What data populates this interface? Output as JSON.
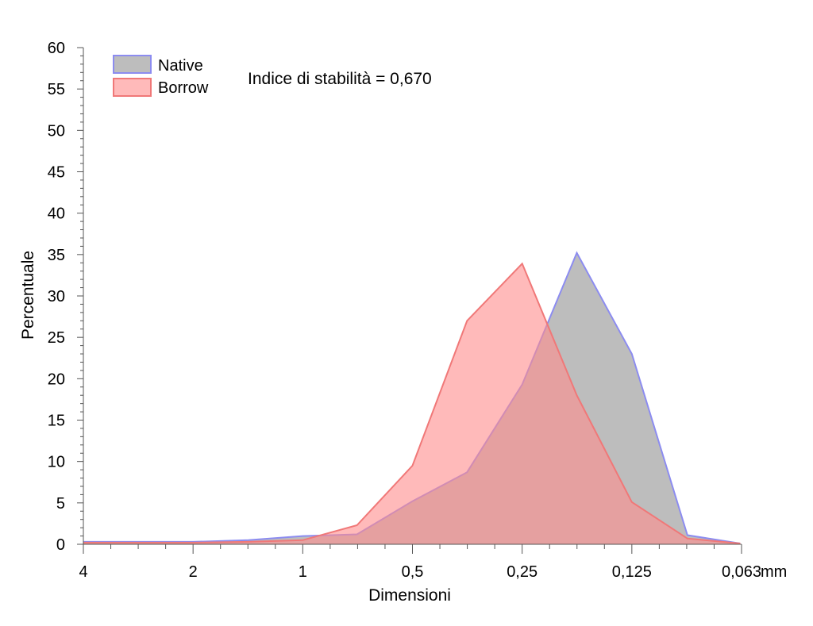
{
  "chart_data": {
    "type": "area",
    "title": "",
    "xlabel": "Dimensioni",
    "ylabel": "Percentuale",
    "annotation": "Indice di stabilità = 0,670",
    "x_unit": "mm",
    "x_ticks": [
      "4",
      "2",
      "1",
      "0,5",
      "0,25",
      "0,125",
      "0,063"
    ],
    "x_scale": "log2 phi (decreasing grain size)",
    "ylim": [
      0,
      60
    ],
    "y_ticks": [
      0,
      5,
      10,
      15,
      20,
      25,
      30,
      35,
      40,
      45,
      50,
      55,
      60
    ],
    "grid": false,
    "legend_position": "top-left",
    "x": [
      4,
      2.83,
      2,
      1.41,
      1,
      0.71,
      0.5,
      0.354,
      0.25,
      0.177,
      0.125,
      0.088,
      0.063
    ],
    "series": [
      {
        "name": "Native",
        "fill": "#bdbdbd",
        "stroke": "#8c8cf0",
        "values": [
          0.3,
          0.3,
          0.3,
          0.5,
          1.0,
          1.2,
          5.2,
          8.7,
          19.3,
          35.2,
          23.0,
          1.1,
          0.1
        ]
      },
      {
        "name": "Borrow",
        "fill": "#ff8c8c",
        "stroke": "#f07878",
        "values": [
          0.2,
          0.2,
          0.2,
          0.3,
          0.5,
          2.3,
          9.5,
          27.0,
          33.9,
          18.0,
          5.1,
          0.7,
          0.1
        ]
      }
    ]
  }
}
